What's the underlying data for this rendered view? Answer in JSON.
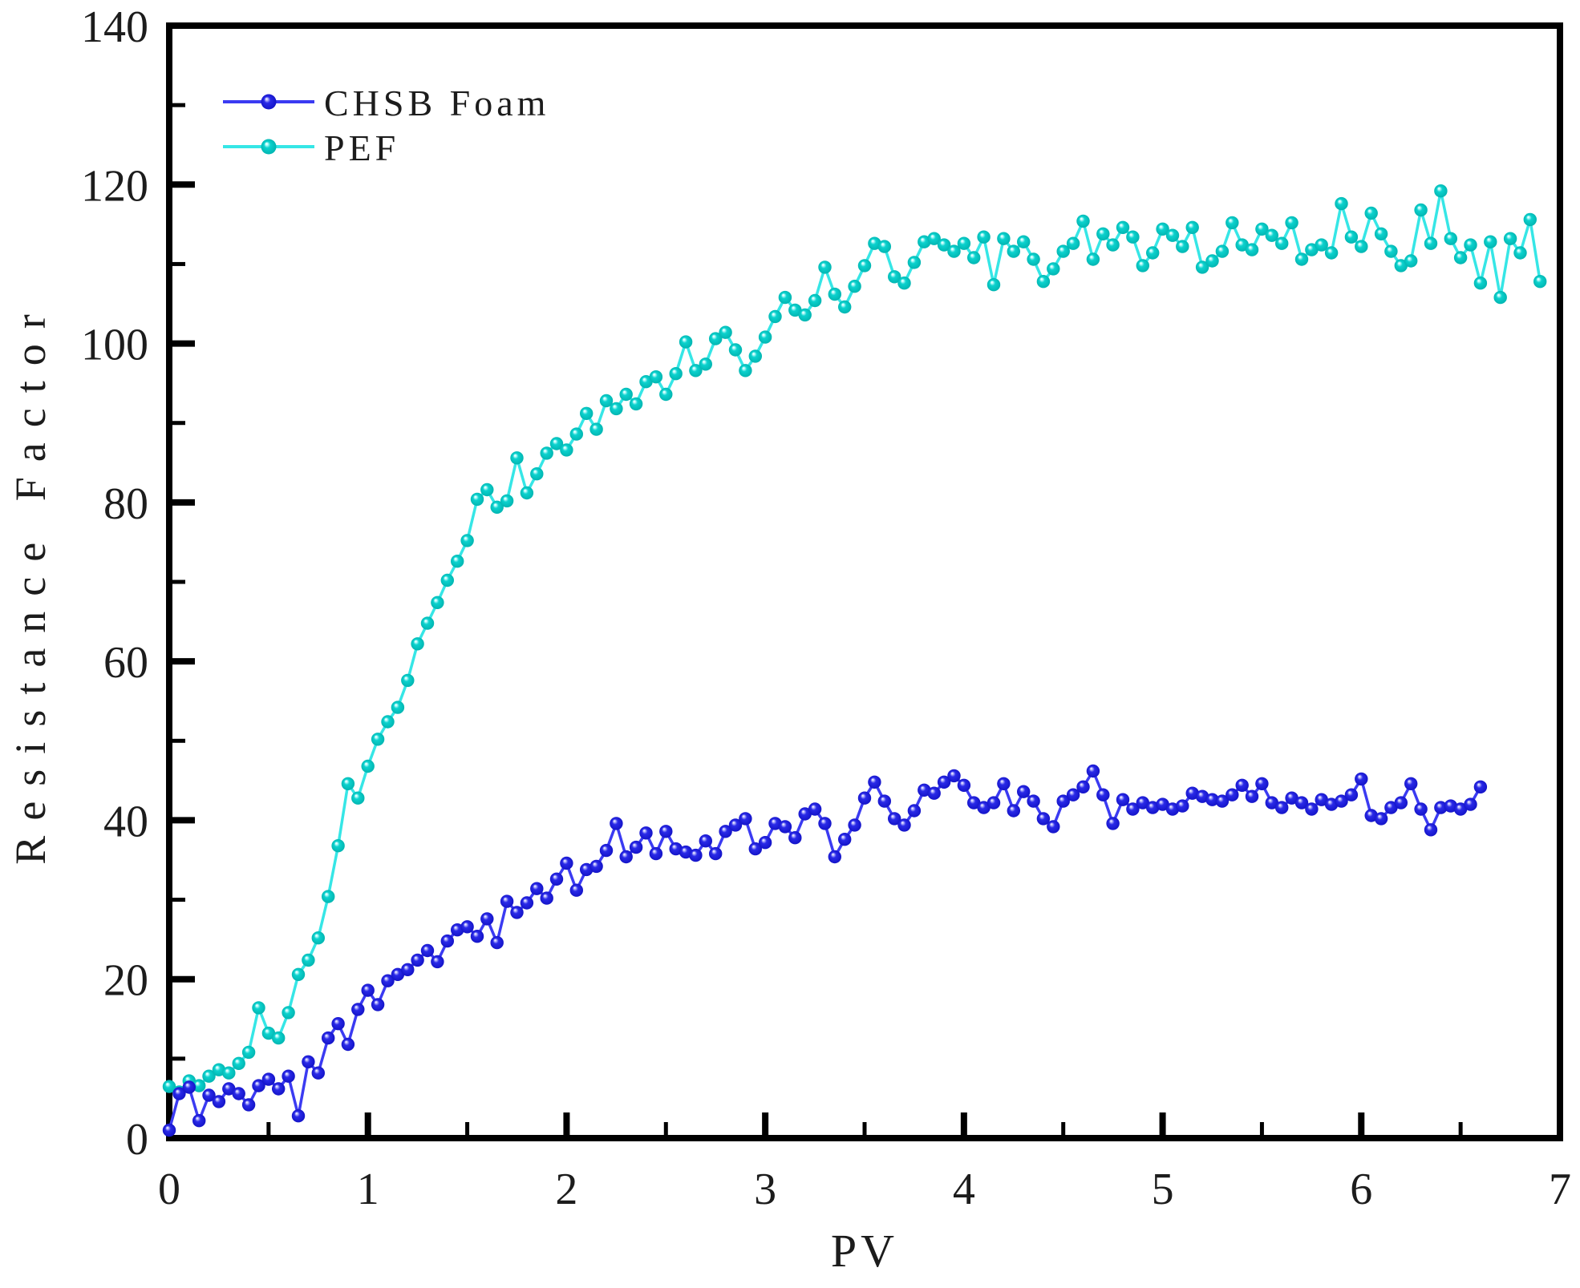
{
  "chart_data": {
    "type": "line",
    "title": "",
    "xlabel": "PV",
    "ylabel": "Resistance Factor",
    "xlim": [
      0,
      7
    ],
    "ylim": [
      0,
      140
    ],
    "xticks_major": [
      0,
      1,
      2,
      3,
      4,
      5,
      6,
      7
    ],
    "xticks_minor": [
      0.5,
      1.5,
      2.5,
      3.5,
      4.5,
      5.5,
      6.5
    ],
    "yticks_major": [
      0,
      20,
      40,
      60,
      80,
      100,
      120,
      140
    ],
    "yticks_minor": [
      10,
      30,
      50,
      70,
      90,
      110,
      130
    ],
    "grid": false,
    "legend_position": "top-left-inside",
    "frame_color": "#000000",
    "series": [
      {
        "name": "CHSB Foam",
        "marker_color": "#1717d0",
        "line_color": "#3b3bf2",
        "points": [
          [
            0,
            1
          ],
          [
            0.05,
            5.6
          ],
          [
            0.1,
            6.4
          ],
          [
            0.15,
            2.2
          ],
          [
            0.2,
            5.4
          ],
          [
            0.25,
            4.6
          ],
          [
            0.3,
            6.2
          ],
          [
            0.35,
            5.6
          ],
          [
            0.4,
            4.2
          ],
          [
            0.45,
            6.6
          ],
          [
            0.5,
            7.4
          ],
          [
            0.55,
            6.2
          ],
          [
            0.6,
            7.8
          ],
          [
            0.65,
            2.8
          ],
          [
            0.7,
            9.6
          ],
          [
            0.75,
            8.2
          ],
          [
            0.8,
            12.6
          ],
          [
            0.85,
            14.4
          ],
          [
            0.9,
            11.8
          ],
          [
            0.95,
            16.2
          ],
          [
            1,
            18.6
          ],
          [
            1.05,
            16.8
          ],
          [
            1.1,
            19.8
          ],
          [
            1.15,
            20.6
          ],
          [
            1.2,
            21.2
          ],
          [
            1.25,
            22.4
          ],
          [
            1.3,
            23.6
          ],
          [
            1.35,
            22.2
          ],
          [
            1.4,
            24.8
          ],
          [
            1.45,
            26.2
          ],
          [
            1.5,
            26.6
          ],
          [
            1.55,
            25.4
          ],
          [
            1.6,
            27.6
          ],
          [
            1.65,
            24.6
          ],
          [
            1.7,
            29.8
          ],
          [
            1.75,
            28.4
          ],
          [
            1.8,
            29.6
          ],
          [
            1.85,
            31.4
          ],
          [
            1.9,
            30.2
          ],
          [
            1.95,
            32.6
          ],
          [
            2,
            34.6
          ],
          [
            2.05,
            31.2
          ],
          [
            2.1,
            33.8
          ],
          [
            2.15,
            34.2
          ],
          [
            2.2,
            36.2
          ],
          [
            2.25,
            39.6
          ],
          [
            2.3,
            35.4
          ],
          [
            2.35,
            36.6
          ],
          [
            2.4,
            38.4
          ],
          [
            2.45,
            35.8
          ],
          [
            2.5,
            38.6
          ],
          [
            2.55,
            36.4
          ],
          [
            2.6,
            36
          ],
          [
            2.65,
            35.6
          ],
          [
            2.7,
            37.4
          ],
          [
            2.75,
            35.8
          ],
          [
            2.8,
            38.6
          ],
          [
            2.85,
            39.4
          ],
          [
            2.9,
            40.2
          ],
          [
            2.95,
            36.4
          ],
          [
            3,
            37.2
          ],
          [
            3.05,
            39.6
          ],
          [
            3.1,
            39.2
          ],
          [
            3.15,
            37.8
          ],
          [
            3.2,
            40.8
          ],
          [
            3.25,
            41.4
          ],
          [
            3.3,
            39.6
          ],
          [
            3.35,
            35.4
          ],
          [
            3.4,
            37.6
          ],
          [
            3.45,
            39.4
          ],
          [
            3.5,
            42.8
          ],
          [
            3.55,
            44.8
          ],
          [
            3.6,
            42.4
          ],
          [
            3.65,
            40.2
          ],
          [
            3.7,
            39.4
          ],
          [
            3.75,
            41.2
          ],
          [
            3.8,
            43.8
          ],
          [
            3.85,
            43.4
          ],
          [
            3.9,
            44.8
          ],
          [
            3.95,
            45.6
          ],
          [
            4,
            44.4
          ],
          [
            4.05,
            42.2
          ],
          [
            4.1,
            41.6
          ],
          [
            4.15,
            42.2
          ],
          [
            4.2,
            44.6
          ],
          [
            4.25,
            41.2
          ],
          [
            4.3,
            43.6
          ],
          [
            4.35,
            42.4
          ],
          [
            4.4,
            40.2
          ],
          [
            4.45,
            39.2
          ],
          [
            4.5,
            42.4
          ],
          [
            4.55,
            43.2
          ],
          [
            4.6,
            44.2
          ],
          [
            4.65,
            46.2
          ],
          [
            4.7,
            43.2
          ],
          [
            4.75,
            39.6
          ],
          [
            4.8,
            42.6
          ],
          [
            4.85,
            41.4
          ],
          [
            4.9,
            42.2
          ],
          [
            4.95,
            41.6
          ],
          [
            5,
            42
          ],
          [
            5.05,
            41.4
          ],
          [
            5.1,
            41.8
          ],
          [
            5.15,
            43.4
          ],
          [
            5.2,
            43
          ],
          [
            5.25,
            42.6
          ],
          [
            5.3,
            42.4
          ],
          [
            5.35,
            43.2
          ],
          [
            5.4,
            44.4
          ],
          [
            5.45,
            43
          ],
          [
            5.5,
            44.6
          ],
          [
            5.55,
            42.2
          ],
          [
            5.6,
            41.6
          ],
          [
            5.65,
            42.8
          ],
          [
            5.7,
            42.2
          ],
          [
            5.75,
            41.4
          ],
          [
            5.8,
            42.6
          ],
          [
            5.85,
            42
          ],
          [
            5.9,
            42.4
          ],
          [
            5.95,
            43.2
          ],
          [
            6,
            45.2
          ],
          [
            6.05,
            40.6
          ],
          [
            6.1,
            40.2
          ],
          [
            6.15,
            41.6
          ],
          [
            6.2,
            42.2
          ],
          [
            6.25,
            44.6
          ],
          [
            6.3,
            41.4
          ],
          [
            6.35,
            38.8
          ],
          [
            6.4,
            41.6
          ],
          [
            6.45,
            41.8
          ],
          [
            6.5,
            41.4
          ],
          [
            6.55,
            42
          ],
          [
            6.6,
            44.2
          ]
        ]
      },
      {
        "name": "PEF",
        "marker_color": "#00c2be",
        "line_color": "#36e6e6",
        "points": [
          [
            0,
            6.5
          ],
          [
            0.05,
            5.8
          ],
          [
            0.1,
            7.2
          ],
          [
            0.15,
            6.6
          ],
          [
            0.2,
            7.8
          ],
          [
            0.25,
            8.6
          ],
          [
            0.3,
            8.2
          ],
          [
            0.35,
            9.4
          ],
          [
            0.4,
            10.8
          ],
          [
            0.45,
            16.4
          ],
          [
            0.5,
            13.2
          ],
          [
            0.55,
            12.6
          ],
          [
            0.6,
            15.8
          ],
          [
            0.65,
            20.6
          ],
          [
            0.7,
            22.4
          ],
          [
            0.75,
            25.2
          ],
          [
            0.8,
            30.4
          ],
          [
            0.85,
            36.8
          ],
          [
            0.9,
            44.6
          ],
          [
            0.95,
            42.8
          ],
          [
            1,
            46.8
          ],
          [
            1.05,
            50.2
          ],
          [
            1.1,
            52.4
          ],
          [
            1.15,
            54.2
          ],
          [
            1.2,
            57.6
          ],
          [
            1.25,
            62.2
          ],
          [
            1.3,
            64.8
          ],
          [
            1.35,
            67.4
          ],
          [
            1.4,
            70.2
          ],
          [
            1.45,
            72.6
          ],
          [
            1.5,
            75.2
          ],
          [
            1.55,
            80.4
          ],
          [
            1.6,
            81.6
          ],
          [
            1.65,
            79.4
          ],
          [
            1.7,
            80.2
          ],
          [
            1.75,
            85.6
          ],
          [
            1.8,
            81.2
          ],
          [
            1.85,
            83.6
          ],
          [
            1.9,
            86.2
          ],
          [
            1.95,
            87.4
          ],
          [
            2,
            86.6
          ],
          [
            2.05,
            88.6
          ],
          [
            2.1,
            91.2
          ],
          [
            2.15,
            89.2
          ],
          [
            2.2,
            92.8
          ],
          [
            2.25,
            91.8
          ],
          [
            2.3,
            93.6
          ],
          [
            2.35,
            92.4
          ],
          [
            2.4,
            95.2
          ],
          [
            2.45,
            95.8
          ],
          [
            2.5,
            93.6
          ],
          [
            2.55,
            96.2
          ],
          [
            2.6,
            100.2
          ],
          [
            2.65,
            96.6
          ],
          [
            2.7,
            97.4
          ],
          [
            2.75,
            100.6
          ],
          [
            2.8,
            101.4
          ],
          [
            2.85,
            99.2
          ],
          [
            2.9,
            96.6
          ],
          [
            2.95,
            98.4
          ],
          [
            3,
            100.8
          ],
          [
            3.05,
            103.4
          ],
          [
            3.1,
            105.8
          ],
          [
            3.15,
            104.2
          ],
          [
            3.2,
            103.6
          ],
          [
            3.25,
            105.4
          ],
          [
            3.3,
            109.6
          ],
          [
            3.35,
            106.2
          ],
          [
            3.4,
            104.6
          ],
          [
            3.45,
            107.2
          ],
          [
            3.5,
            109.8
          ],
          [
            3.55,
            112.6
          ],
          [
            3.6,
            112.2
          ],
          [
            3.65,
            108.4
          ],
          [
            3.7,
            107.6
          ],
          [
            3.75,
            110.2
          ],
          [
            3.8,
            112.8
          ],
          [
            3.85,
            113.2
          ],
          [
            3.9,
            112.4
          ],
          [
            3.95,
            111.6
          ],
          [
            4,
            112.6
          ],
          [
            4.05,
            110.8
          ],
          [
            4.1,
            113.4
          ],
          [
            4.15,
            107.4
          ],
          [
            4.2,
            113.2
          ],
          [
            4.25,
            111.6
          ],
          [
            4.3,
            112.8
          ],
          [
            4.35,
            110.6
          ],
          [
            4.4,
            107.8
          ],
          [
            4.45,
            109.4
          ],
          [
            4.5,
            111.6
          ],
          [
            4.55,
            112.6
          ],
          [
            4.6,
            115.4
          ],
          [
            4.65,
            110.6
          ],
          [
            4.7,
            113.8
          ],
          [
            4.75,
            112.4
          ],
          [
            4.8,
            114.6
          ],
          [
            4.85,
            113.4
          ],
          [
            4.9,
            109.8
          ],
          [
            4.95,
            111.4
          ],
          [
            5,
            114.4
          ],
          [
            5.05,
            113.6
          ],
          [
            5.1,
            112.2
          ],
          [
            5.15,
            114.6
          ],
          [
            5.2,
            109.6
          ],
          [
            5.25,
            110.4
          ],
          [
            5.3,
            111.6
          ],
          [
            5.35,
            115.2
          ],
          [
            5.4,
            112.4
          ],
          [
            5.45,
            111.8
          ],
          [
            5.5,
            114.4
          ],
          [
            5.55,
            113.6
          ],
          [
            5.6,
            112.6
          ],
          [
            5.65,
            115.2
          ],
          [
            5.7,
            110.6
          ],
          [
            5.75,
            111.8
          ],
          [
            5.8,
            112.4
          ],
          [
            5.85,
            111.4
          ],
          [
            5.9,
            117.6
          ],
          [
            5.95,
            113.4
          ],
          [
            6,
            112.2
          ],
          [
            6.05,
            116.4
          ],
          [
            6.1,
            113.8
          ],
          [
            6.15,
            111.6
          ],
          [
            6.2,
            109.8
          ],
          [
            6.25,
            110.4
          ],
          [
            6.3,
            116.8
          ],
          [
            6.35,
            112.6
          ],
          [
            6.4,
            119.2
          ],
          [
            6.45,
            113.2
          ],
          [
            6.5,
            110.8
          ],
          [
            6.55,
            112.4
          ],
          [
            6.6,
            107.6
          ],
          [
            6.65,
            112.8
          ],
          [
            6.7,
            105.8
          ],
          [
            6.75,
            113.2
          ],
          [
            6.8,
            111.4
          ],
          [
            6.85,
            115.6
          ],
          [
            6.9,
            107.8
          ]
        ]
      }
    ]
  }
}
